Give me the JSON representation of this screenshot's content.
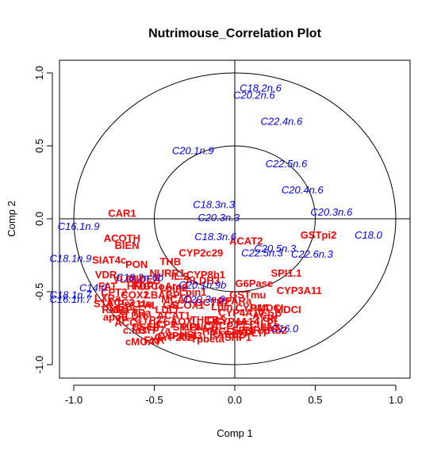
{
  "chart_data": {
    "type": "scatter",
    "title": "Nutrimouse_Correlation Plot",
    "xlabel": "Comp 1",
    "ylabel": "Comp 2",
    "xlim": [
      -1.0,
      1.0
    ],
    "ylim": [
      -1.0,
      1.0
    ],
    "x_ticks": [
      "-1.0",
      "-0.5",
      "0.0",
      "0.5",
      "1.0"
    ],
    "y_ticks": [
      "-1.0",
      "-0.5",
      "0.0",
      "0.5",
      "1.0"
    ],
    "circles": [
      1.0,
      0.5
    ],
    "grid": false,
    "colors": {
      "genes": "#ff0000",
      "lipids": "#0000ff"
    },
    "series": [
      {
        "group": "genes",
        "points": [
          {
            "label": "CAR1",
            "x": -0.7,
            "y": 0.04
          },
          {
            "label": "ACOTH",
            "x": -0.7,
            "y": -0.13
          },
          {
            "label": "BIEN",
            "x": -0.67,
            "y": -0.18
          },
          {
            "label": "SIAT4c",
            "x": -0.78,
            "y": -0.28
          },
          {
            "label": "PON",
            "x": -0.61,
            "y": -0.31
          },
          {
            "label": "THB",
            "x": -0.4,
            "y": -0.29
          },
          {
            "label": "CYP2c29",
            "x": -0.21,
            "y": -0.23
          },
          {
            "label": "ACAT2",
            "x": 0.07,
            "y": -0.15
          },
          {
            "label": "GSTpi2",
            "x": 0.52,
            "y": -0.11
          },
          {
            "label": "SPI1.1",
            "x": 0.32,
            "y": -0.37
          },
          {
            "label": "CYP3A11",
            "x": 0.4,
            "y": -0.49
          },
          {
            "label": "G6Pase",
            "x": 0.12,
            "y": -0.44
          },
          {
            "label": "MDCI",
            "x": 0.33,
            "y": -0.62
          },
          {
            "label": "VDR",
            "x": -0.8,
            "y": -0.38
          },
          {
            "label": "CYP8b1",
            "x": -0.18,
            "y": -0.38
          },
          {
            "label": "ALDH3",
            "x": -0.2,
            "y": -0.42
          },
          {
            "label": "FDFT",
            "x": -0.55,
            "y": -0.46
          },
          {
            "label": "PMDCI",
            "x": 0.2,
            "y": -0.61
          },
          {
            "label": "CACP",
            "x": -0.1,
            "y": -0.73
          },
          {
            "label": "ACBP",
            "x": 0.2,
            "y": -0.66
          },
          {
            "label": "GK",
            "x": 0.22,
            "y": -0.68
          },
          {
            "label": "CYP27",
            "x": -0.52,
            "y": -0.69
          },
          {
            "label": "cMOAT",
            "x": -0.57,
            "y": -0.84
          },
          {
            "label": "CYP2b13",
            "x": -0.34,
            "y": -0.8
          },
          {
            "label": "LXRa",
            "x": -0.79,
            "y": -0.54
          },
          {
            "label": "FAS",
            "x": 0.22,
            "y": -0.74
          },
          {
            "label": "PECI",
            "x": 0.08,
            "y": -0.72
          },
          {
            "label": "GSTmu",
            "x": 0.08,
            "y": -0.52
          },
          {
            "label": "CPT2",
            "x": -0.75,
            "y": -0.5
          },
          {
            "label": "ACC2",
            "x": -0.71,
            "y": -0.57
          },
          {
            "label": "HMGCoAred",
            "x": -0.48,
            "y": -0.46
          },
          {
            "label": "PPARa",
            "x": 0.0,
            "y": -0.56
          },
          {
            "label": "CYP4A10",
            "x": 0.04,
            "y": -0.64
          },
          {
            "label": "CYP4A14",
            "x": 0.01,
            "y": -0.7
          },
          {
            "label": "LPL",
            "x": 0.22,
            "y": -0.71
          },
          {
            "label": "RXRa",
            "x": -0.74,
            "y": -0.62
          },
          {
            "label": "Pex11a",
            "x": -0.62,
            "y": -0.58
          },
          {
            "label": "LDLr",
            "x": -0.42,
            "y": -0.62
          },
          {
            "label": "ACAT1",
            "x": -0.38,
            "y": -0.66
          },
          {
            "label": "ACOX1",
            "x": -0.3,
            "y": -0.59
          },
          {
            "label": "THIOL",
            "x": -0.18,
            "y": -0.69
          },
          {
            "label": "HPNCL",
            "x": -0.22,
            "y": -0.74
          },
          {
            "label": "SR.BI",
            "x": -0.3,
            "y": -0.74
          },
          {
            "label": "CYP2c2",
            "x": -0.38,
            "y": -0.81
          },
          {
            "label": "BSEP",
            "x": -0.55,
            "y": -0.74
          },
          {
            "label": "apoE",
            "x": -0.74,
            "y": -0.67
          },
          {
            "label": "ALDH",
            "x": -0.64,
            "y": -0.66
          },
          {
            "label": "UCP2",
            "x": -0.45,
            "y": -0.72
          },
          {
            "label": "CYP7a",
            "x": -0.5,
            "y": -0.76
          },
          {
            "label": "ACC1",
            "x": -0.66,
            "y": -0.71
          },
          {
            "label": "HMGCoAS",
            "x": -0.04,
            "y": -0.77
          },
          {
            "label": "MRP6",
            "x": -0.69,
            "y": -0.62
          },
          {
            "label": "COX2",
            "x": -0.62,
            "y": -0.52
          },
          {
            "label": "SHP1",
            "x": 0.02,
            "y": -0.81
          },
          {
            "label": "Lpin",
            "x": -0.08,
            "y": -0.6
          },
          {
            "label": "OCTN2",
            "x": -0.14,
            "y": -0.57
          },
          {
            "label": "RARb2",
            "x": -0.05,
            "y": -0.79
          },
          {
            "label": "CIDEA",
            "x": -0.56,
            "y": -0.41
          },
          {
            "label": "NURR1",
            "x": -0.42,
            "y": -0.37
          },
          {
            "label": "i.BABP",
            "x": -0.45,
            "y": -0.52
          },
          {
            "label": "MCAD",
            "x": -0.36,
            "y": -0.55
          },
          {
            "label": "Lpin1",
            "x": -0.26,
            "y": -0.5
          },
          {
            "label": "VLDLr",
            "x": -0.66,
            "y": -0.41
          },
          {
            "label": "PAL",
            "x": -0.54,
            "y": -0.59
          },
          {
            "label": "TRa",
            "x": -0.58,
            "y": -0.64
          },
          {
            "label": "AOX",
            "x": -0.33,
            "y": -0.7
          },
          {
            "label": "c.fos",
            "x": -0.62,
            "y": -0.76
          },
          {
            "label": "CBS",
            "x": -0.12,
            "y": -0.69
          },
          {
            "label": "SPI1",
            "x": 0.05,
            "y": -0.76
          },
          {
            "label": "Tpbeta",
            "x": -0.17,
            "y": -0.82
          },
          {
            "label": "PLTP",
            "x": 0.14,
            "y": -0.78
          },
          {
            "label": "FXR",
            "x": -0.5,
            "y": -0.83
          },
          {
            "label": "HSL",
            "x": -0.28,
            "y": -0.79
          },
          {
            "label": "S14",
            "x": -0.82,
            "y": -0.58
          },
          {
            "label": "FAT",
            "x": -0.79,
            "y": -0.46
          },
          {
            "label": "Lpin2",
            "x": -0.38,
            "y": -0.47
          },
          {
            "label": "IL.2",
            "x": -0.34,
            "y": -0.39
          },
          {
            "label": "CYP4A",
            "x": 0.11,
            "y": -0.61
          },
          {
            "label": "RXRb2",
            "x": 0.22,
            "y": -0.76
          },
          {
            "label": "GS",
            "x": -0.4,
            "y": -0.59
          }
        ]
      },
      {
        "group": "lipids",
        "points": [
          {
            "label": "C18.2n.6",
            "x": 0.16,
            "y": 0.9
          },
          {
            "label": "C20.2n.6",
            "x": 0.12,
            "y": 0.85
          },
          {
            "label": "C22.4n.6",
            "x": 0.29,
            "y": 0.67
          },
          {
            "label": "C20.1n.9",
            "x": -0.26,
            "y": 0.47
          },
          {
            "label": "C22.5n.6",
            "x": 0.32,
            "y": 0.38
          },
          {
            "label": "C20.4n.6",
            "x": 0.42,
            "y": 0.2
          },
          {
            "label": "C18.3n.3",
            "x": -0.13,
            "y": 0.1
          },
          {
            "label": "C20.3n.3",
            "x": -0.1,
            "y": 0.01
          },
          {
            "label": "C20.3n.6",
            "x": 0.6,
            "y": 0.05
          },
          {
            "label": "C16.1n.9",
            "x": -0.97,
            "y": -0.05
          },
          {
            "label": "C18.0",
            "x": 0.83,
            "y": -0.11
          },
          {
            "label": "C18.3n.6",
            "x": -0.12,
            "y": -0.12
          },
          {
            "label": "C20.5n.3",
            "x": 0.25,
            "y": -0.2
          },
          {
            "label": "C22.5n.3",
            "x": 0.17,
            "y": -0.23
          },
          {
            "label": "C22.6n.3",
            "x": 0.48,
            "y": -0.24
          },
          {
            "label": "C18.1n.9",
            "x": -1.02,
            "y": -0.27
          },
          {
            "label": "C14.0",
            "x": -0.88,
            "y": -0.47
          },
          {
            "label": "C16.0",
            "x": 0.31,
            "y": -0.75
          },
          {
            "label": "C20.3n.9",
            "x": -0.19,
            "y": -0.55
          },
          {
            "label": "C18.1n.7",
            "x": -1.02,
            "y": -0.52
          },
          {
            "label": "C16.1n.7",
            "x": -1.02,
            "y": -0.55
          },
          {
            "label": "C18.2n.6b",
            "x": -0.59,
            "y": -0.4
          },
          {
            "label": "C20.1n.9b",
            "x": -0.2,
            "y": -0.45
          }
        ]
      }
    ]
  }
}
